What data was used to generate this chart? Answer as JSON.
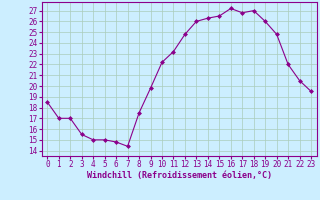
{
  "x": [
    0,
    1,
    2,
    3,
    4,
    5,
    6,
    7,
    8,
    9,
    10,
    11,
    12,
    13,
    14,
    15,
    16,
    17,
    18,
    19,
    20,
    21,
    22,
    23
  ],
  "y": [
    18.5,
    17.0,
    17.0,
    15.5,
    15.0,
    15.0,
    14.8,
    14.4,
    17.5,
    19.8,
    22.2,
    23.2,
    24.8,
    26.0,
    26.3,
    26.5,
    27.2,
    26.8,
    27.0,
    26.0,
    24.8,
    22.0,
    20.5,
    19.5
  ],
  "line_color": "#8b008b",
  "marker": "D",
  "markersize": 2.0,
  "linewidth": 0.8,
  "bg_color": "#cceeff",
  "grid_color": "#aaccbb",
  "xlabel": "Windchill (Refroidissement éolien,°C)",
  "xlabel_color": "#8b008b",
  "tick_color": "#8b008b",
  "xlim": [
    -0.5,
    23.5
  ],
  "ylim": [
    13.5,
    27.8
  ],
  "yticks": [
    14,
    15,
    16,
    17,
    18,
    19,
    20,
    21,
    22,
    23,
    24,
    25,
    26,
    27
  ],
  "xticks": [
    0,
    1,
    2,
    3,
    4,
    5,
    6,
    7,
    8,
    9,
    10,
    11,
    12,
    13,
    14,
    15,
    16,
    17,
    18,
    19,
    20,
    21,
    22,
    23
  ],
  "spine_color": "#8b008b",
  "tick_fontsize": 5.5,
  "xlabel_fontsize": 6.0
}
